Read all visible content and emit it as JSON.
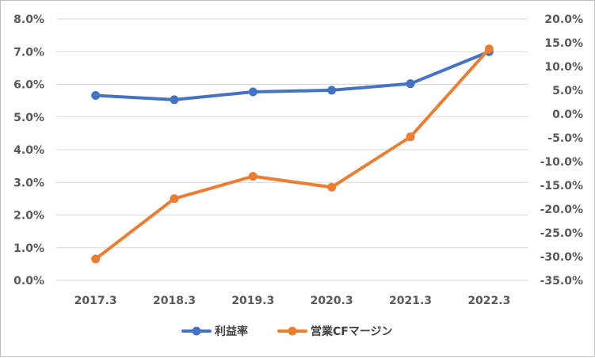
{
  "chart_data": {
    "type": "line",
    "categories": [
      "2017.3",
      "2018.3",
      "2019.3",
      "2020.3",
      "2021.3",
      "2022.3"
    ],
    "series": [
      {
        "name": "利益率",
        "axis": "left",
        "color": "#4472c4",
        "values": [
          5.66,
          5.53,
          5.77,
          5.82,
          6.02,
          7.0
        ]
      },
      {
        "name": "営業CFマージン",
        "axis": "right",
        "color": "#ed7d31",
        "values": [
          -30.5,
          -17.8,
          -13.1,
          -15.4,
          -4.8,
          13.7
        ]
      }
    ],
    "left_axis": {
      "ylim": [
        0,
        8
      ],
      "ticks": [
        "0.0%",
        "1.0%",
        "2.0%",
        "3.0%",
        "4.0%",
        "5.0%",
        "6.0%",
        "7.0%",
        "8.0%"
      ]
    },
    "right_axis": {
      "ylim": [
        -35,
        20
      ],
      "ticks": [
        "-35.0%",
        "-30.0%",
        "-25.0%",
        "-20.0%",
        "-15.0%",
        "-10.0%",
        "-5.0%",
        "0.0%",
        "5.0%",
        "10.0%",
        "15.0%",
        "20.0%"
      ]
    },
    "grid": true,
    "legend_position": "bottom"
  }
}
